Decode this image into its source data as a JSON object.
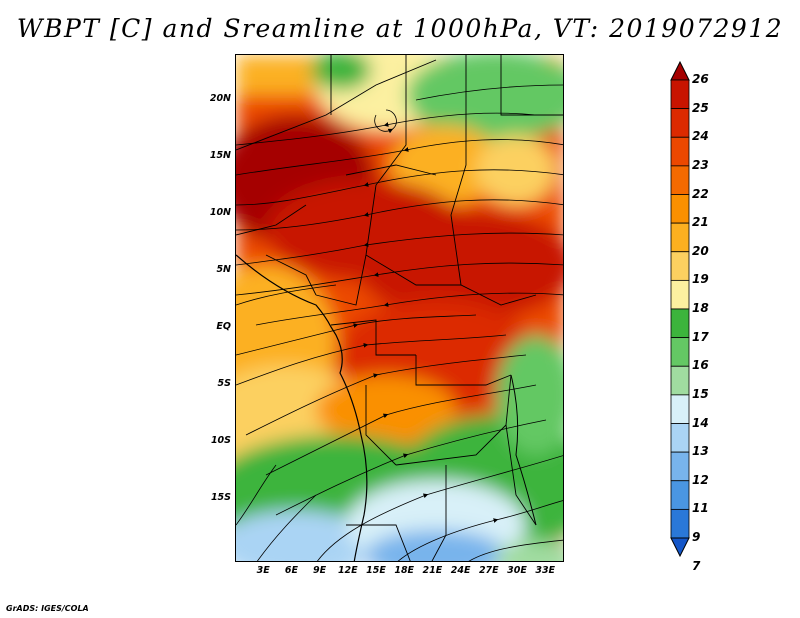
{
  "title": "WBPT [C] and Sreamline at 1000hPa, VT: 2019072912",
  "credit": "GrADS: IGES/COLA",
  "map": {
    "lon_range": [
      0,
      35
    ],
    "lat_range": [
      -20.5,
      24
    ],
    "y_axis_labels": [
      {
        "text": "20N",
        "lat": 20
      },
      {
        "text": "15N",
        "lat": 15
      },
      {
        "text": "10N",
        "lat": 10
      },
      {
        "text": "5N",
        "lat": 5
      },
      {
        "text": "EQ",
        "lat": 0
      },
      {
        "text": "5S",
        "lat": -5
      },
      {
        "text": "10S",
        "lat": -10
      },
      {
        "text": "15S",
        "lat": -15
      }
    ],
    "x_axis_labels": [
      {
        "text": "3E",
        "lon": 3
      },
      {
        "text": "6E",
        "lon": 6
      },
      {
        "text": "9E",
        "lon": 9
      },
      {
        "text": "12E",
        "lon": 12
      },
      {
        "text": "15E",
        "lon": 15
      },
      {
        "text": "18E",
        "lon": 18
      },
      {
        "text": "21E",
        "lon": 21
      },
      {
        "text": "24E",
        "lon": 24
      },
      {
        "text": "27E",
        "lon": 27
      },
      {
        "text": "30E",
        "lon": 30
      },
      {
        "text": "33E",
        "lon": 33
      }
    ]
  },
  "colorbar": {
    "labels": [
      "26",
      "25",
      "24",
      "23",
      "22",
      "21",
      "20",
      "19",
      "18",
      "17",
      "16",
      "15",
      "14",
      "13",
      "12",
      "11",
      "9",
      "7"
    ],
    "colors": [
      "#a50000",
      "#c81400",
      "#dc2a00",
      "#ec4800",
      "#f46a00",
      "#fa9000",
      "#fcb020",
      "#fcd060",
      "#fcf0a0",
      "#3cb43c",
      "#64c864",
      "#a0dca0",
      "#d8f0f8",
      "#aad4f4",
      "#78b4ec",
      "#4a96e2",
      "#2a78d8",
      "#1456c8"
    ]
  }
}
